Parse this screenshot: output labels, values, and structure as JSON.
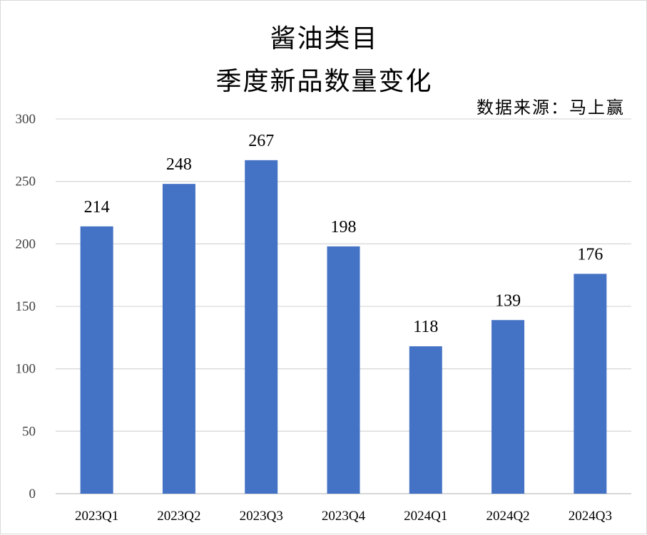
{
  "title": {
    "line1": "酱油类目",
    "line2": "季度新品数量变化"
  },
  "source": "数据来源：马上赢",
  "colors": {
    "bar": "#4472C4",
    "grid": "#d9d9d9",
    "axis": "#bfbfbf"
  },
  "chart_data": {
    "type": "bar",
    "title": "酱油类目 季度新品数量变化",
    "categories": [
      "2023Q1",
      "2023Q2",
      "2023Q3",
      "2023Q4",
      "2024Q1",
      "2024Q2",
      "2024Q3"
    ],
    "values": [
      214,
      248,
      267,
      198,
      118,
      139,
      176
    ],
    "ylim": [
      0,
      300
    ],
    "yticks": [
      0,
      50,
      100,
      150,
      200,
      250,
      300
    ],
    "grid": true,
    "data_labels": true,
    "xlabel": "",
    "ylabel": ""
  }
}
